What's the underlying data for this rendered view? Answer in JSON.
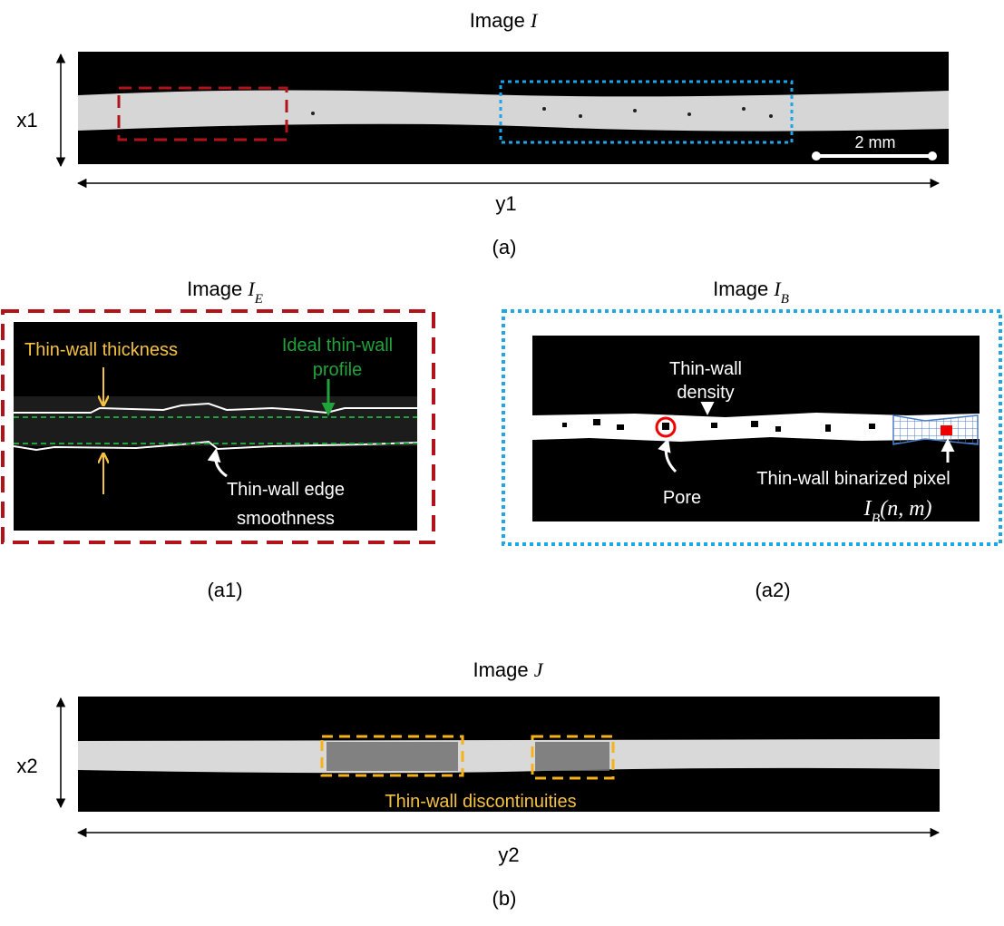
{
  "panel_a": {
    "title": {
      "prefix": "Image",
      "symbol": "I"
    },
    "x_label": "x1",
    "y_label": "y1",
    "scale_bar": "2 mm",
    "caption": "(a)"
  },
  "panel_a1": {
    "title": {
      "prefix": "Image",
      "symbol": "I",
      "subscript": "E"
    },
    "thickness_label": "Thin-wall thickness",
    "profile_label": [
      "Ideal thin-wall",
      "profile"
    ],
    "smoothness_label": [
      "Thin-wall edge",
      "smoothness"
    ],
    "caption": "(a1)"
  },
  "panel_a2": {
    "title": {
      "prefix": "Image",
      "symbol": "I",
      "subscript": "B"
    },
    "density_label": [
      "Thin-wall",
      "density"
    ],
    "pore_label": "Pore",
    "pixel_label": "Thin-wall binarized pixel",
    "pixel_symbol": {
      "symbol": "I",
      "subscript": "B",
      "args": "(n, m)"
    },
    "caption": "(a2)"
  },
  "panel_b": {
    "title": {
      "prefix": "Image",
      "symbol": "J"
    },
    "x_label": "x2",
    "y_label": "y2",
    "discontinuity_label": "Thin-wall discontinuities",
    "caption": "(b)"
  }
}
